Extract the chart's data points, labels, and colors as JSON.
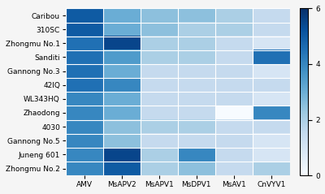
{
  "rows": [
    "Caribou",
    "310SC",
    "Zhongmu No.1",
    "Sanditi",
    "Gannong No.3",
    "42IQ",
    "WL343HQ",
    "Zhaodong",
    "4030",
    "Gannong No.5",
    "Juneng 601",
    "Zhongmu No.2"
  ],
  "cols": [
    "AMV",
    "MsAPV2",
    "MsAPV1",
    "MsDPV1",
    "MsAV1",
    "CnVYV1"
  ],
  "values": [
    [
      5.0,
      3.0,
      2.5,
      2.5,
      2.0,
      1.5
    ],
    [
      5.0,
      3.0,
      2.5,
      2.0,
      2.0,
      1.5
    ],
    [
      4.5,
      5.5,
      2.0,
      2.0,
      1.5,
      1.0
    ],
    [
      4.5,
      3.5,
      2.0,
      2.0,
      1.5,
      4.5
    ],
    [
      4.5,
      3.0,
      1.5,
      1.5,
      1.5,
      1.0
    ],
    [
      4.5,
      4.0,
      1.5,
      1.5,
      1.5,
      1.5
    ],
    [
      4.0,
      3.0,
      1.5,
      1.5,
      1.5,
      1.0
    ],
    [
      4.0,
      3.0,
      1.5,
      1.5,
      0.0,
      4.0
    ],
    [
      4.0,
      2.5,
      2.0,
      2.0,
      1.5,
      1.5
    ],
    [
      4.0,
      2.5,
      1.5,
      1.5,
      1.5,
      1.0
    ],
    [
      4.0,
      5.5,
      2.0,
      4.0,
      1.5,
      1.0
    ],
    [
      4.0,
      5.0,
      2.0,
      2.5,
      1.5,
      2.0
    ]
  ],
  "vmin": 0,
  "vmax": 6,
  "cbar_ticks": [
    0,
    2,
    4,
    6
  ],
  "colormap": "Blues",
  "bg_color": "#f0f0f0",
  "grid_color": "white"
}
